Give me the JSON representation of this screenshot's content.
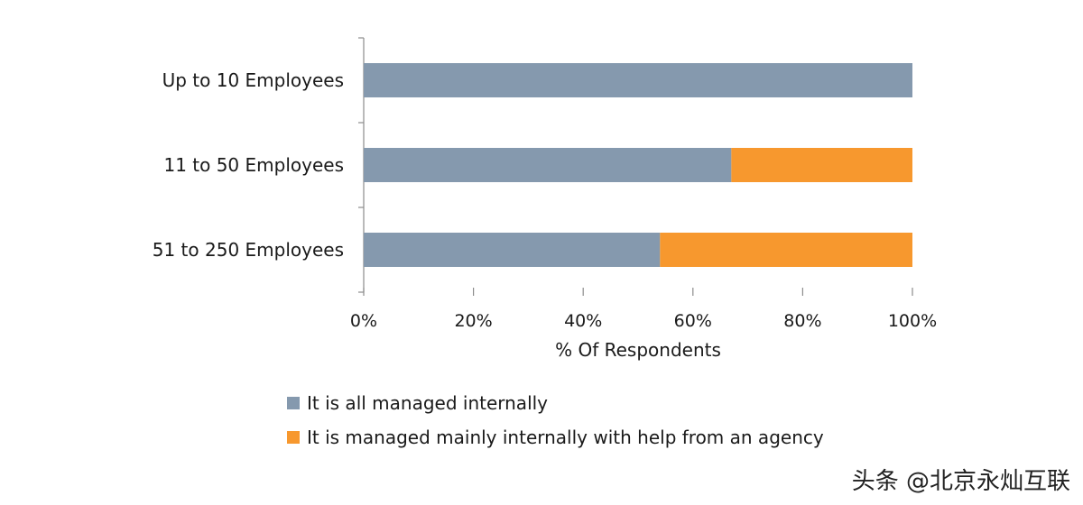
{
  "chart_data": {
    "type": "bar",
    "orientation": "horizontal",
    "stacked": true,
    "categories": [
      "Up to 10 Employees",
      "11 to 50 Employees",
      "51 to 250 Employees"
    ],
    "series": [
      {
        "name": "It is all managed internally",
        "color": "#8599ae",
        "values": [
          100,
          67,
          54
        ]
      },
      {
        "name": "It is managed mainly internally with help from an agency",
        "color": "#f7982e",
        "values": [
          0,
          33,
          46
        ]
      }
    ],
    "xlabel": "% Of Respondents",
    "xlim": [
      0,
      100
    ],
    "ticks": [
      "0%",
      "20%",
      "40%",
      "60%",
      "80%",
      "100%"
    ],
    "grid": false,
    "legend_position": "bottom-left"
  },
  "watermark": "头条 @北京永灿互联"
}
